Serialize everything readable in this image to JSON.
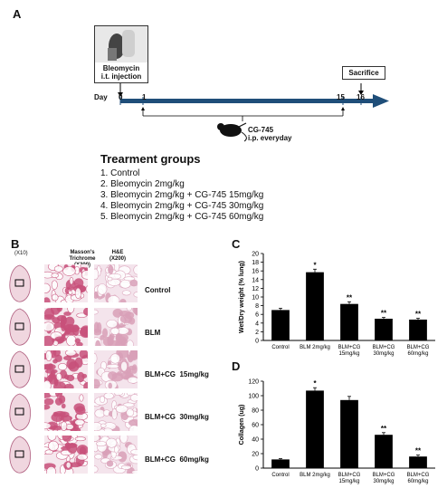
{
  "panelA": {
    "letter": "A",
    "injection_label_line1": "Bleomycin",
    "injection_label_line2": "i.t. injection",
    "day_label": "Day",
    "day_ticks": [
      "0",
      "1",
      "15",
      "16"
    ],
    "sacrifice_label": "Sacrifice",
    "treatment_line1": "CG-745",
    "treatment_line2": "i.p. everyday",
    "groups_title": "Trearment groups",
    "groups": [
      "1. Control",
      "2. Bleomycin 2mg/kg",
      "3. Bleomycin 2mg/kg + CG-745 15mg/kg",
      "4. Bleomycin 2mg/kg + CG-745 30mg/kg",
      "5. Bleomycin 2mg/kg + CG-745 60mg/kg"
    ]
  },
  "panelB": {
    "letter": "B",
    "magnification_whole": "(X10)",
    "col1_title": "Masson's Trichrome",
    "col1_mag": "(X200)",
    "col2_title": "H&E",
    "col2_mag": "(X200)",
    "rows": [
      "Control",
      "BLM",
      "BLM+CG  15mg/kg",
      "BLM+CG  30mg/kg",
      "BLM+CG  60mg/kg"
    ]
  },
  "chart_data": [
    {
      "panel": "C",
      "type": "bar",
      "ylabel": "Wet/Dry weight (% lung)",
      "ylim": [
        0,
        20
      ],
      "yticks": [
        "0",
        "2",
        "4",
        "6",
        "8",
        "10",
        "12",
        "14",
        "16",
        "18",
        "20"
      ],
      "categories": [
        "Control",
        "BLM 2mg/kg",
        "BLM+CG 15mg/kg",
        "BLM+CG 30mg/kg",
        "BLM+CG 60mg/kg"
      ],
      "category_lines": [
        [
          "Control"
        ],
        [
          "BLM 2mg/kg"
        ],
        [
          "BLM+CG",
          "15mg/kg"
        ],
        [
          "BLM+CG",
          "30mg/kg"
        ],
        [
          "BLM+CG",
          "60mg/kg"
        ]
      ],
      "values": [
        7.0,
        15.7,
        8.4,
        5.0,
        4.8
      ],
      "errors": [
        0.4,
        0.7,
        0.5,
        0.3,
        0.3
      ],
      "markers": [
        "",
        "*",
        "**",
        "**",
        "**"
      ],
      "bar_color": "#000000"
    },
    {
      "panel": "D",
      "type": "bar",
      "ylabel": "Collagen (ug)",
      "ylim": [
        0,
        120
      ],
      "yticks": [
        "0",
        "20",
        "40",
        "60",
        "80",
        "100",
        "120"
      ],
      "categories": [
        "Control",
        "BLM 2mg/kg",
        "BLM+CG 15mg/kg",
        "BLM+CG 30mg/kg",
        "BLM+CG 60mg/kg"
      ],
      "category_lines": [
        [
          "Control"
        ],
        [
          "BLM  2mg/kg"
        ],
        [
          "BLM+CG",
          "15mg/kg"
        ],
        [
          "BLM+CG",
          "30mg/kg"
        ],
        [
          "BLM+CG",
          "60mg/kg"
        ]
      ],
      "values": [
        12,
        107,
        94,
        46,
        16
      ],
      "errors": [
        1,
        4,
        5,
        3,
        2
      ],
      "markers": [
        "",
        "*",
        "",
        "**",
        "**"
      ],
      "bar_color": "#000000"
    }
  ],
  "colors": {
    "timeline": "#1f4e79",
    "masson_pink": "#c8507a",
    "he_pink": "#d9a0b8"
  }
}
